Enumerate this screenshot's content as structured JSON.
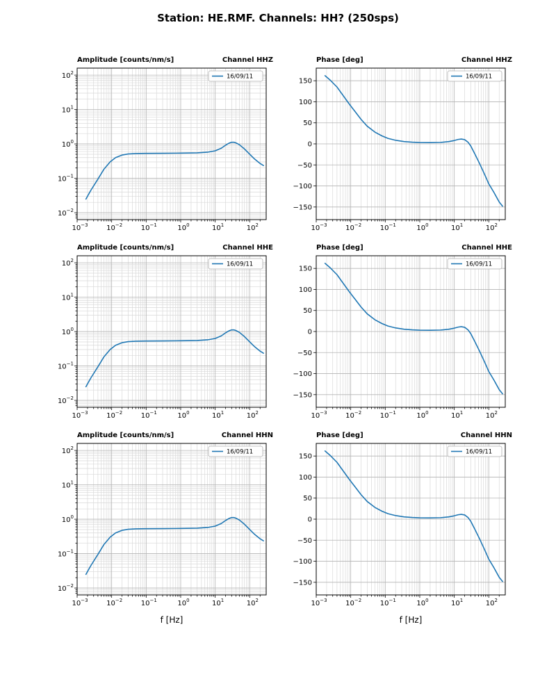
{
  "figure": {
    "title": "Station: HE.RMF. Channels: HH? (250sps)",
    "line_color": "#1f77b4",
    "grid_major_color": "#b3b3b3",
    "grid_minor_color": "#d8d8d8",
    "legend_label": "16/09/11"
  },
  "chart_data": {
    "type": "line",
    "layout": "3 rows x 2 cols; left column log-log amplitude response, right column semilog-x phase response; dense log minor grid; legend upper-right in each panel",
    "x_axis": {
      "scale": "log",
      "lim": [
        0.001,
        300
      ],
      "tick_exponents": [
        -3,
        -2,
        -1,
        0,
        1,
        2
      ],
      "label": "f [Hz]"
    },
    "amplitude_axis": {
      "scale": "log",
      "lim": [
        0.0063,
        160
      ],
      "tick_exponents": [
        -2,
        -1,
        0,
        1,
        2
      ]
    },
    "phase_axis": {
      "scale": "linear",
      "lim": [
        -180,
        180
      ],
      "ticks": [
        -150,
        -100,
        -50,
        0,
        50,
        100,
        150
      ]
    },
    "series": {
      "amplitude": {
        "x": [
          0.0018,
          0.0025,
          0.004,
          0.006,
          0.009,
          0.013,
          0.02,
          0.03,
          0.05,
          0.1,
          0.3,
          1,
          3,
          6,
          10,
          15,
          20,
          25,
          30,
          35,
          40,
          50,
          70,
          100,
          140,
          200,
          250
        ],
        "y": [
          0.025,
          0.045,
          0.095,
          0.185,
          0.3,
          0.4,
          0.475,
          0.51,
          0.525,
          0.53,
          0.535,
          0.54,
          0.55,
          0.575,
          0.63,
          0.75,
          0.92,
          1.05,
          1.12,
          1.12,
          1.07,
          0.95,
          0.72,
          0.5,
          0.36,
          0.27,
          0.235
        ]
      },
      "phase": {
        "x": [
          0.0018,
          0.0025,
          0.004,
          0.006,
          0.009,
          0.013,
          0.02,
          0.03,
          0.05,
          0.08,
          0.12,
          0.2,
          0.35,
          0.6,
          1,
          2,
          4,
          7,
          10,
          13,
          16,
          20,
          25,
          30,
          40,
          55,
          75,
          100,
          140,
          200,
          250
        ],
        "y": [
          162,
          152,
          135,
          115,
          95,
          78,
          58,
          42,
          28,
          19,
          13,
          8.5,
          5.5,
          4,
          3.2,
          3,
          3.5,
          5.5,
          8,
          10.5,
          11.5,
          10,
          4,
          -5,
          -25,
          -48,
          -72,
          -95,
          -115,
          -138,
          -148
        ]
      }
    },
    "panels": [
      {
        "kind": "amplitude",
        "left_title": "Amplitude [counts/nm/s]",
        "right_title": "Channel HHZ",
        "legend": "16/09/11"
      },
      {
        "kind": "phase",
        "left_title": "Phase [deg]",
        "right_title": "Channel HHZ",
        "legend": "16/09/11"
      },
      {
        "kind": "amplitude",
        "left_title": "Amplitude [counts/nm/s]",
        "right_title": "Channel HHE",
        "legend": "16/09/11"
      },
      {
        "kind": "phase",
        "left_title": "Phase [deg]",
        "right_title": "Channel HHE",
        "legend": "16/09/11"
      },
      {
        "kind": "amplitude",
        "left_title": "Amplitude [counts/nm/s]",
        "right_title": "Channel HHN",
        "legend": "16/09/11"
      },
      {
        "kind": "phase",
        "left_title": "Phase [deg]",
        "right_title": "Channel HHN",
        "legend": "16/09/11"
      }
    ]
  }
}
